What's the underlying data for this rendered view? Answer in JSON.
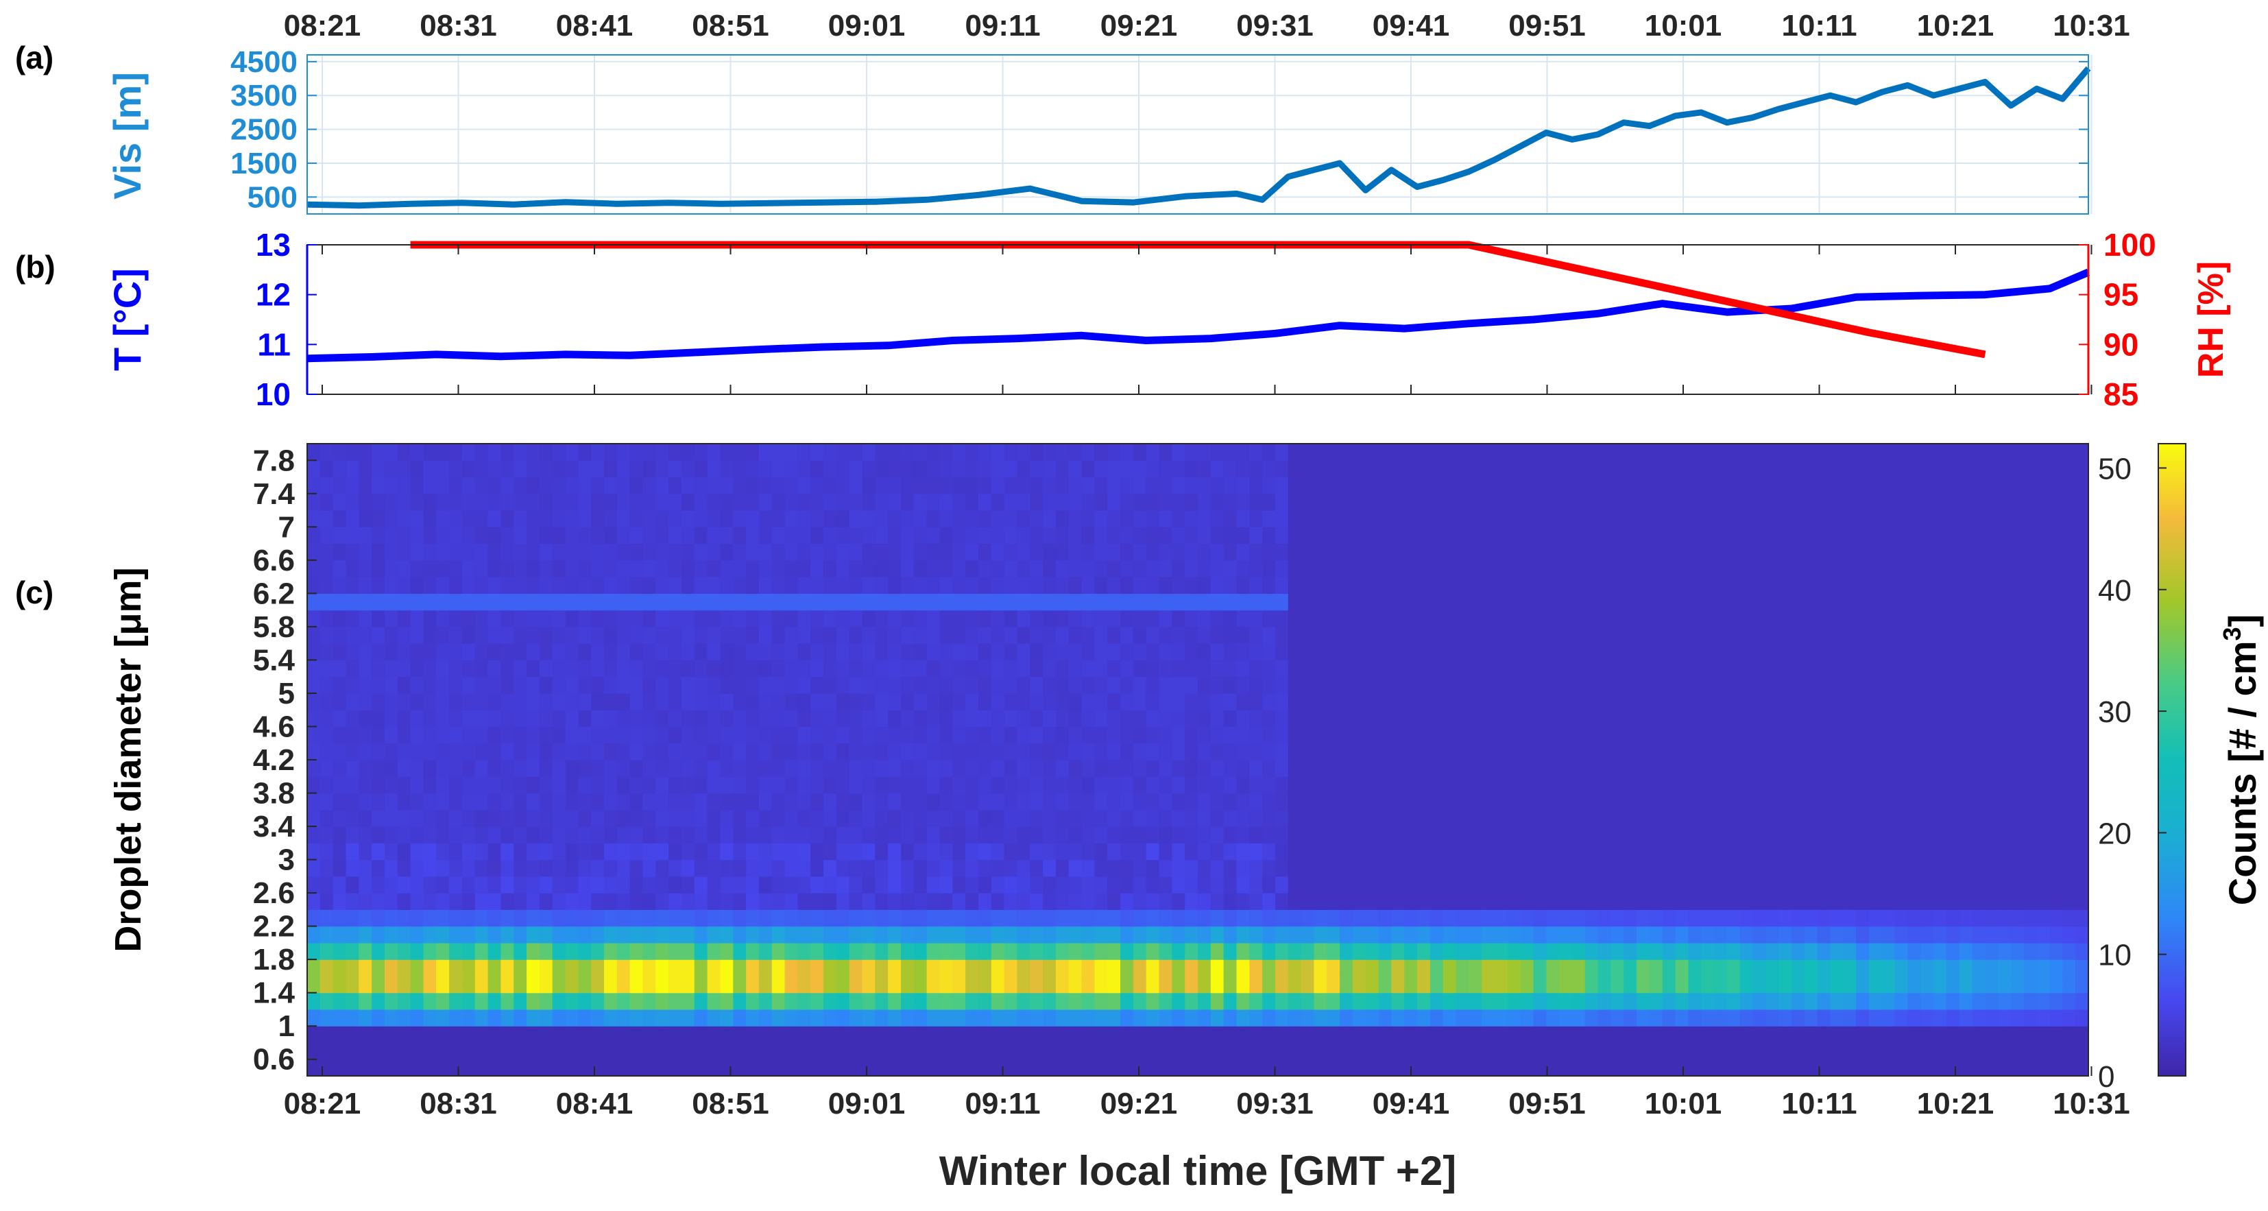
{
  "time_ticks": [
    "08:21",
    "08:31",
    "08:41",
    "08:51",
    "09:01",
    "09:11",
    "09:21",
    "09:31",
    "09:41",
    "09:51",
    "10:01",
    "10:11",
    "10:21",
    "10:31"
  ],
  "panel_labels": {
    "a": "(a)",
    "b": "(b)",
    "c": "(c)"
  },
  "xlabel": "Winter local time [GMT +2]",
  "colors": {
    "vis_line": "#0072BD",
    "vis_axis": "#1F8DD6",
    "temp": "#0000FF",
    "rh": "#FF0000",
    "grid": "#D9E6F2"
  },
  "chart_data": [
    {
      "type": "line",
      "panel": "a",
      "ylabel": "Vis [m]",
      "yticks": [
        "500",
        "1500",
        "2500",
        "3500",
        "4500"
      ],
      "ylim": [
        0,
        4700
      ],
      "xlim": [
        0,
        138
      ],
      "grid": true,
      "series": [
        {
          "x": [
            0,
            4,
            8,
            12,
            16,
            20,
            24,
            28,
            32,
            36,
            40,
            44,
            48,
            52,
            56,
            60,
            64,
            68,
            72,
            74,
            76,
            78,
            80,
            82,
            84,
            86,
            88,
            90,
            92,
            94,
            96,
            98,
            100,
            102,
            104,
            106,
            108,
            110,
            112,
            114,
            116,
            118,
            120,
            122,
            124,
            126,
            128,
            130,
            132,
            134,
            136,
            138
          ],
          "y": [
            280,
            250,
            300,
            330,
            280,
            350,
            300,
            330,
            300,
            320,
            340,
            360,
            420,
            560,
            750,
            380,
            340,
            520,
            600,
            420,
            1100,
            1300,
            1500,
            700,
            1300,
            800,
            1000,
            1250,
            1600,
            2000,
            2400,
            2200,
            2350,
            2700,
            2600,
            2900,
            3000,
            2700,
            2850,
            3100,
            3300,
            3500,
            3300,
            3600,
            3800,
            3500,
            3700,
            3900,
            3200,
            3700,
            3400,
            4300
          ]
        }
      ]
    },
    {
      "type": "line",
      "panel": "b",
      "ylabel_left": "T  [°C]",
      "ylabel_right": "RH [%]",
      "yticks_left": [
        "10",
        "11",
        "12",
        "13"
      ],
      "ylim_left": [
        10,
        13
      ],
      "yticks_right": [
        "85",
        "90",
        "95",
        "100"
      ],
      "ylim_right": [
        85,
        100
      ],
      "xlim": [
        0,
        138
      ],
      "series": [
        {
          "name": "T",
          "axis": "left",
          "x": [
            0,
            5,
            10,
            15,
            20,
            25,
            30,
            35,
            40,
            45,
            50,
            55,
            60,
            65,
            70,
            75,
            80,
            85,
            90,
            95,
            100,
            105,
            110,
            115,
            120,
            125,
            130,
            135,
            138
          ],
          "y": [
            10.72,
            10.75,
            10.8,
            10.76,
            10.8,
            10.78,
            10.84,
            10.9,
            10.95,
            10.98,
            11.08,
            11.12,
            11.18,
            11.08,
            11.12,
            11.22,
            11.38,
            11.32,
            11.42,
            11.5,
            11.62,
            11.82,
            11.65,
            11.72,
            11.95,
            11.98,
            12.0,
            12.12,
            12.45
          ]
        },
        {
          "name": "RH",
          "axis": "right",
          "x": [
            8,
            90,
            121,
            130
          ],
          "y": [
            100,
            100,
            91.2,
            89
          ]
        }
      ]
    },
    {
      "type": "heatmap",
      "panel": "c",
      "ylabel": "Droplet diameter [μm]",
      "yticks": [
        "0.6",
        "1",
        "1.4",
        "1.8",
        "2.2",
        "2.6",
        "3",
        "3.4",
        "3.8",
        "4.2",
        "4.6",
        "5",
        "5.4",
        "5.8",
        "6.2",
        "6.6",
        "7",
        "7.4",
        "7.8"
      ],
      "ylim": [
        0.4,
        8.0
      ],
      "xlim": [
        0,
        138
      ],
      "colorbar": {
        "label": "Counts [# / cm",
        "label_sup": "3",
        "label_end": "]",
        "ticks": [
          "0",
          "10",
          "20",
          "30",
          "40",
          "50"
        ],
        "range": [
          0,
          52
        ]
      },
      "description_values": {
        "peak_band_diameter": [
          1.2,
          2.0
        ],
        "peak_counts_before_0940": 45,
        "background_counts": 3
      }
    }
  ]
}
